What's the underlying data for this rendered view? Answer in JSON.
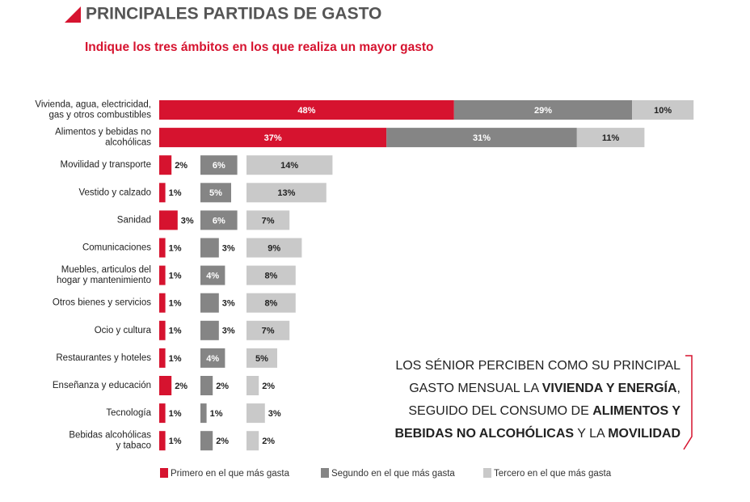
{
  "chart_data": {
    "type": "bar",
    "orientation": "horizontal",
    "title": "PRINCIPALES PARTIDAS DE GASTO",
    "subtitle": "Indique los tres ámbitos en los que realiza un mayor gasto",
    "categories": [
      "Vivienda, agua, electricidad,\ngas y otros combustibles",
      "Alimentos y bebidas no\nalcohólicas",
      "Movilidad y transporte",
      "Vestido y calzado",
      "Sanidad",
      "Comunicaciones",
      "Muebles, articulos del\nhogar y mantenimiento",
      "Otros bienes y servicios",
      "Ocio y cultura",
      "Restaurantes y hoteles",
      "Enseñanza y educación",
      "Tecnología",
      "Bebidas alcohólicas\ny tabaco"
    ],
    "series": [
      {
        "name": "Primero en el que más gasta",
        "color": "#d6132f",
        "values": [
          48,
          37,
          2,
          1,
          3,
          1,
          1,
          1,
          1,
          1,
          2,
          1,
          1
        ],
        "value_labels": [
          "48%",
          "37%",
          "2%",
          "1%",
          "3%",
          "1%",
          "1%",
          "1%",
          "1%",
          "1%",
          "2%",
          "1%",
          "1%"
        ]
      },
      {
        "name": "Segundo en el que más gasta",
        "color": "#858585",
        "values": [
          29,
          31,
          6,
          5,
          6,
          3,
          4,
          3,
          3,
          4,
          2,
          1,
          2
        ],
        "value_labels": [
          "29%",
          "31%",
          "6%",
          "5%",
          "6%",
          "3%",
          "4%",
          "3%",
          "3%",
          "4%",
          "2%",
          "1%",
          "2%"
        ]
      },
      {
        "name": "Tercero en el que más gasta",
        "color": "#c9c9c9",
        "values": [
          10,
          11,
          14,
          13,
          7,
          9,
          8,
          8,
          7,
          5,
          2,
          3,
          2
        ],
        "value_labels": [
          "10%",
          "11%",
          "14%",
          "13%",
          "7%",
          "9%",
          "8%",
          "8%",
          "7%",
          "5%",
          "2%",
          "3%",
          "2%"
        ]
      }
    ],
    "annotation": [
      [
        {
          "text": "LOS SÉNIOR PERCIBEN COMO SU PRINCIPAL",
          "bold": false
        }
      ],
      [
        {
          "text": "GASTO MENSUAL LA ",
          "bold": false
        },
        {
          "text": "VIVIENDA Y ENERGÍA",
          "bold": true
        },
        {
          "text": ",",
          "bold": false
        }
      ],
      [
        {
          "text": "SEGUIDO DEL CONSUMO DE ",
          "bold": false
        },
        {
          "text": "ALIMENTOS Y",
          "bold": true
        }
      ],
      [
        {
          "text": "BEBIDAS NO ALCOHÓLICAS",
          "bold": true
        },
        {
          "text": " Y LA ",
          "bold": false
        },
        {
          "text": "MOVILIDAD",
          "bold": true
        }
      ]
    ]
  }
}
